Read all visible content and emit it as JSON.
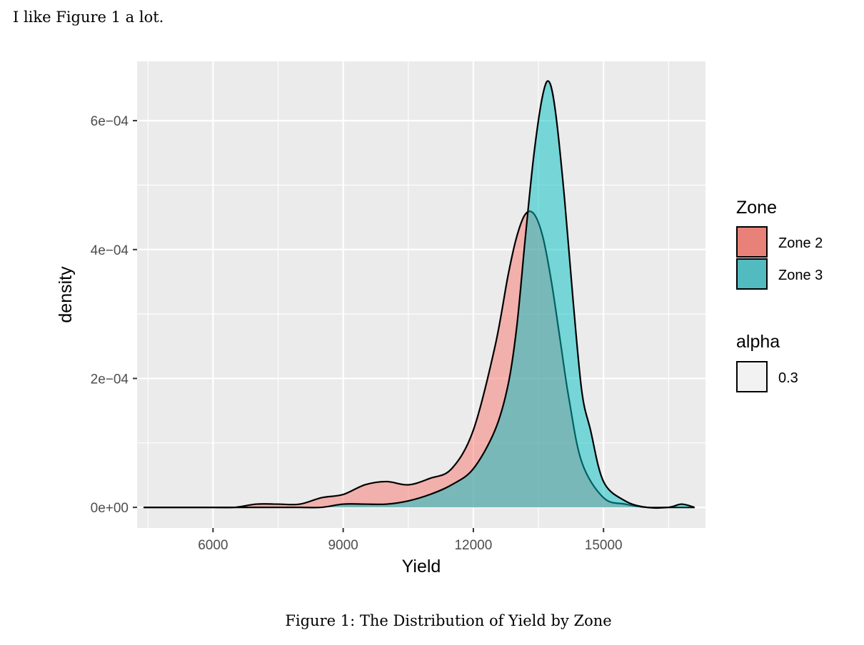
{
  "intro_text": "I like Figure 1 a lot.",
  "caption": "Figure 1: The Distribution of Yield by Zone",
  "chart_data": {
    "type": "area",
    "subtype": "density",
    "xlabel": "Yield",
    "ylabel": "density",
    "xlim": [
      4250,
      17350
    ],
    "ylim": [
      -3.2e-05,
      0.000692
    ],
    "x_ticks": [
      6000,
      9000,
      12000,
      15000
    ],
    "x_tick_labels": [
      "6000",
      "9000",
      "12000",
      "15000"
    ],
    "y_ticks": [
      0,
      0.0002,
      0.0004,
      0.0006
    ],
    "y_tick_labels": [
      "0e+00",
      "2e−04",
      "4e−04",
      "6e−04"
    ],
    "grid": true,
    "legend_placement": "right",
    "legend": {
      "fill_title": "Zone",
      "alpha_title": "alpha",
      "alpha_label": "0.3"
    },
    "series": [
      {
        "name": "Zone 2",
        "color": "#F8766D",
        "alpha": 0.5,
        "x": [
          4400,
          5000,
          5500,
          6000,
          6500,
          7000,
          7500,
          8000,
          8500,
          9000,
          9500,
          10000,
          10500,
          11000,
          11500,
          12000,
          12500,
          12800,
          13000,
          13200,
          13400,
          13600,
          13800,
          14000,
          14200,
          14500,
          15000,
          15500,
          16000,
          16500,
          16700,
          17100
        ],
        "y": [
          0.0,
          0.0,
          0.0,
          0.0,
          0.0,
          5e-06,
          5e-06,
          5e-06,
          1.5e-05,
          2e-05,
          3.5e-05,
          4e-05,
          3.5e-05,
          4.5e-05,
          6e-05,
          0.00012,
          0.00025,
          0.00036,
          0.00042,
          0.000455,
          0.000455,
          0.00042,
          0.00035,
          0.00026,
          0.00017,
          7e-05,
          1.5e-05,
          5e-06,
          0.0,
          0.0,
          0.0,
          0.0
        ]
      },
      {
        "name": "Zone 3",
        "color": "#00BFC4",
        "alpha": 0.5,
        "x": [
          4400,
          5000,
          5500,
          6000,
          6500,
          7000,
          7500,
          8000,
          8500,
          9000,
          9500,
          10000,
          10500,
          11000,
          11500,
          12000,
          12500,
          12800,
          13000,
          13200,
          13400,
          13600,
          13750,
          13900,
          14100,
          14300,
          14500,
          14700,
          15000,
          15500,
          16000,
          16500,
          16800,
          17100
        ],
        "y": [
          0.0,
          0.0,
          0.0,
          0.0,
          0.0,
          0.0,
          0.0,
          0.0,
          0.0,
          5e-06,
          5e-06,
          5e-06,
          1e-05,
          2e-05,
          3.5e-05,
          6e-05,
          0.00012,
          0.00019,
          0.00028,
          0.00042,
          0.00055,
          0.00064,
          0.00066,
          0.00061,
          0.00048,
          0.00032,
          0.00018,
          0.00012,
          4e-05,
          1e-05,
          0.0,
          0.0,
          5e-06,
          0.0
        ]
      }
    ]
  }
}
